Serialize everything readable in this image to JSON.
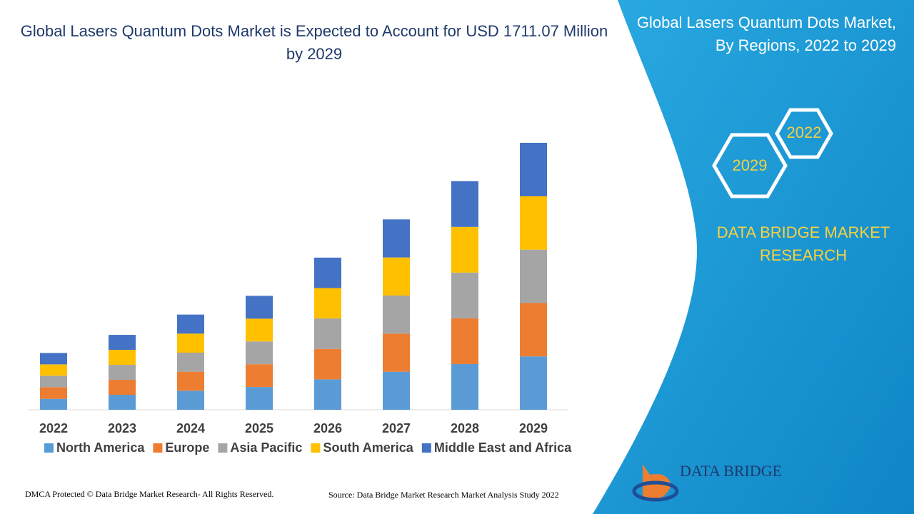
{
  "chart_data": {
    "type": "stacked-bar",
    "title": "Global Lasers Quantum Dots Market is Expected to Account for USD 1711.07 Million by 2029",
    "categories": [
      "2022",
      "2023",
      "2024",
      "2025",
      "2026",
      "2027",
      "2028",
      "2029"
    ],
    "series": [
      {
        "name": "North America",
        "color": "#5b9bd5",
        "values": [
          70,
          96,
          122,
          146,
          195,
          244,
          293,
          342
        ]
      },
      {
        "name": "Europe",
        "color": "#ed7d31",
        "values": [
          75,
          96,
          122,
          146,
          195,
          244,
          293,
          342
        ]
      },
      {
        "name": "Asia Pacific",
        "color": "#a5a5a5",
        "values": [
          73,
          96,
          122,
          146,
          195,
          244,
          293,
          342
        ]
      },
      {
        "name": "South America",
        "color": "#ffc000",
        "values": [
          73,
          96,
          122,
          146,
          195,
          244,
          293,
          342
        ]
      },
      {
        "name": "Middle East and Africa",
        "color": "#4472c4",
        "values": [
          73,
          96,
          122,
          146,
          195,
          244,
          293,
          343
        ]
      }
    ]
  },
  "panel": {
    "title": "Global Lasers Quantum Dots Market, By Regions, 2022 to 2029",
    "hex_labels": [
      "2022",
      "2029"
    ],
    "brand": "DATA BRIDGE MARKET RESEARCH",
    "logo_text": "DATA BRIDGE"
  },
  "footer": {
    "left": "DMCA Protected © Data Bridge Market Research- All Rights Reserved.",
    "right": "Source: Data Bridge Market Research Market Analysis Study 2022"
  }
}
